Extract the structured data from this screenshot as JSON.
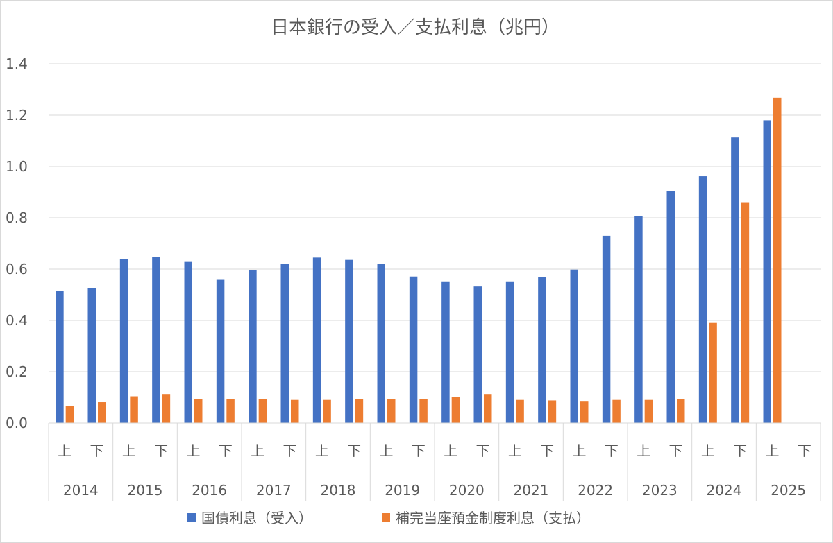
{
  "chart_data": {
    "type": "bar",
    "title": "日本銀行の受入／支払利息（兆円）",
    "ylim": [
      0,
      1.4
    ],
    "yticks": [
      "0.0",
      "0.2",
      "0.4",
      "0.6",
      "0.8",
      "1.0",
      "1.2",
      "1.4"
    ],
    "grid": true,
    "legend_position": "bottom",
    "years": [
      "2014",
      "2015",
      "2016",
      "2017",
      "2018",
      "2019",
      "2020",
      "2021",
      "2022",
      "2023",
      "2024",
      "2025"
    ],
    "halves": [
      "上",
      "下"
    ],
    "series": [
      {
        "name": "国債利息（受入）",
        "color": "#4472c4",
        "values": [
          0.515,
          0.525,
          0.638,
          0.647,
          0.628,
          0.558,
          0.596,
          0.621,
          0.645,
          0.636,
          0.621,
          0.571,
          0.552,
          0.532,
          0.552,
          0.568,
          0.598,
          0.73,
          0.807,
          0.905,
          0.962,
          1.113,
          1.18,
          null
        ]
      },
      {
        "name": "補完当座預金制度利息（支払）",
        "color": "#ed7d31",
        "values": [
          0.067,
          0.081,
          0.104,
          0.113,
          0.092,
          0.092,
          0.092,
          0.09,
          0.09,
          0.092,
          0.093,
          0.092,
          0.102,
          0.113,
          0.09,
          0.088,
          0.086,
          0.09,
          0.09,
          0.094,
          0.39,
          0.858,
          1.268,
          null
        ]
      }
    ]
  }
}
